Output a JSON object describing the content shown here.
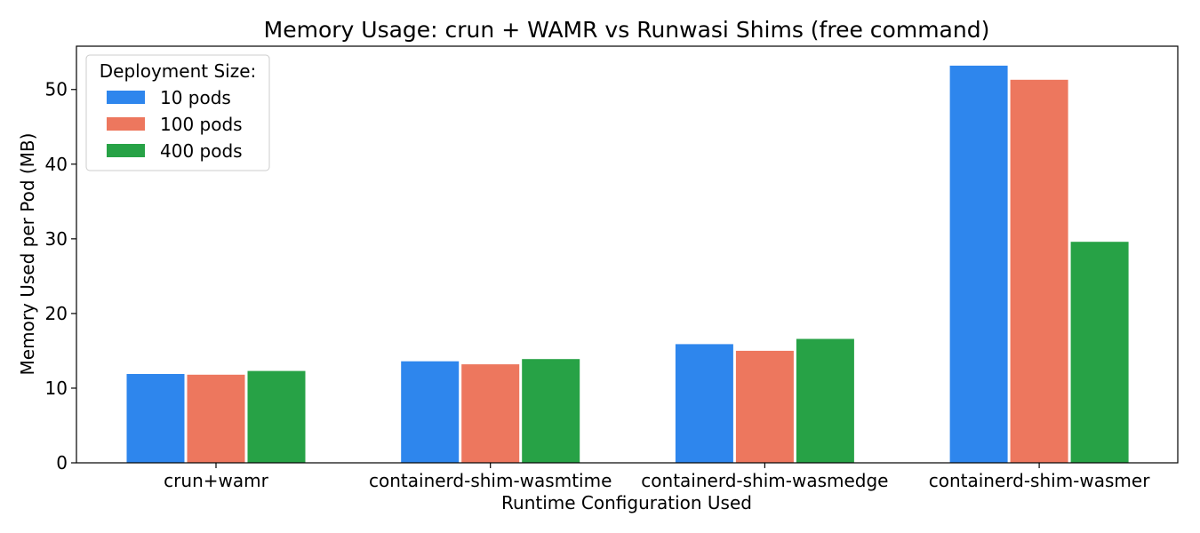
{
  "chart_data": {
    "type": "bar",
    "title": "Memory Usage: crun + WAMR vs Runwasi Shims (free command)",
    "xlabel": "Runtime Configuration Used",
    "ylabel": "Memory Used per Pod (MB)",
    "categories": [
      "crun+wamr",
      "containerd-shim-wasmtime",
      "containerd-shim-wasmedge",
      "containerd-shim-wasmer"
    ],
    "category_label_colors": [
      "#ff0000",
      "#000000",
      "#000000",
      "#000000"
    ],
    "series": [
      {
        "name": "10 pods",
        "color": "#2e86ed",
        "values": [
          11.9,
          13.6,
          15.9,
          53.2
        ]
      },
      {
        "name": "100 pods",
        "color": "#ed775e",
        "values": [
          11.8,
          13.2,
          15.0,
          51.3
        ]
      },
      {
        "name": "400 pods",
        "color": "#27a246",
        "values": [
          12.3,
          13.9,
          16.6,
          29.6
        ]
      }
    ],
    "ylim": [
      0,
      55.8
    ],
    "yticks": [
      0,
      10,
      20,
      30,
      40,
      50
    ],
    "legend": {
      "title": "Deployment Size:",
      "position": "top-left"
    },
    "grid": false
  }
}
